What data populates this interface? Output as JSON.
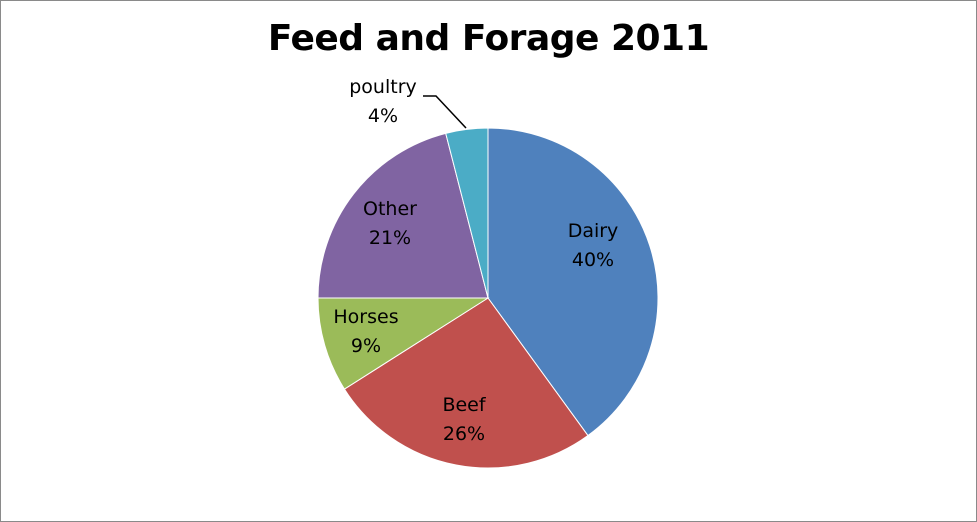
{
  "chart_data": {
    "type": "pie",
    "title": "Feed and Forage 2011",
    "slices": [
      {
        "name": "Dairy",
        "value": 40,
        "label": "40%",
        "color": "#4F81BD"
      },
      {
        "name": "Beef",
        "value": 26,
        "label": "26%",
        "color": "#C0504D"
      },
      {
        "name": "Horses",
        "value": 9,
        "label": "9%",
        "color": "#9BBB59"
      },
      {
        "name": "Other",
        "value": 21,
        "label": "21%",
        "color": "#8064A2"
      },
      {
        "name": "poultry",
        "value": 4,
        "label": "4%",
        "color": "#4BACC6"
      }
    ],
    "start_angle_deg": 0,
    "direction": "clockwise",
    "legend": "none",
    "leader_line_on": "poultry"
  }
}
